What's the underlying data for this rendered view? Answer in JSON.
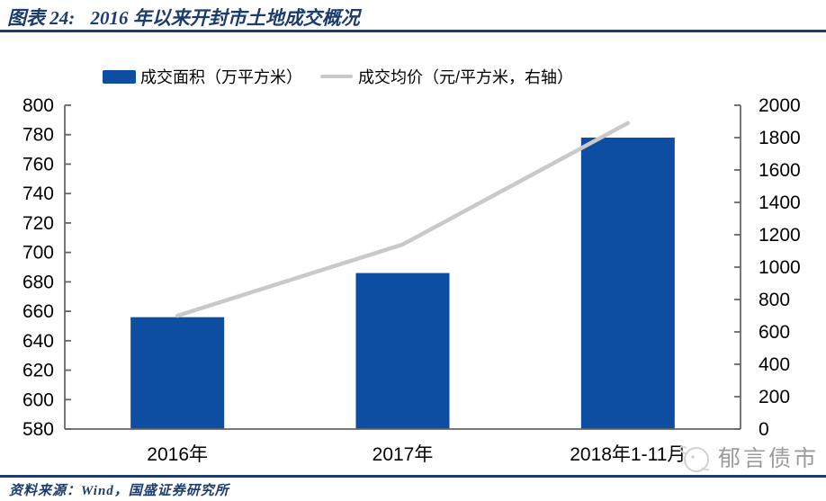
{
  "header": {
    "title_prefix": "图表 24:",
    "title": "2016 年以来开封市土地成交概况"
  },
  "legend": {
    "items": [
      {
        "label": "成交面积（万平方米）"
      },
      {
        "label": "成交均价（元/平方米，右轴）"
      }
    ]
  },
  "footer": {
    "source": "资料来源：Wind，国盛证券研究所"
  },
  "watermark": {
    "text": "郁言债市"
  },
  "colors": {
    "bar": "#0d4da2",
    "line": "#c9c9c9",
    "navy": "#1c3c6e",
    "axis": "#666666",
    "watermark": "#9b9b9b"
  },
  "chart_data": {
    "type": "bar",
    "subtype": "bar+line, dual axis",
    "title": "2016 年以来开封市土地成交概况",
    "categories": [
      "2016年",
      "2017年",
      "2018年1-11月"
    ],
    "series": [
      {
        "name": "成交面积（万平方米）",
        "type": "bar",
        "axis": "left",
        "values": [
          656,
          686,
          778
        ]
      },
      {
        "name": "成交均价（元/平方米，右轴）",
        "type": "line",
        "axis": "right",
        "values": [
          700,
          1140,
          1890
        ]
      }
    ],
    "left_axis": {
      "min": 580,
      "max": 800,
      "step": 20,
      "ticks": [
        800,
        780,
        760,
        740,
        720,
        700,
        680,
        660,
        640,
        620,
        600,
        580
      ]
    },
    "right_axis": {
      "min": 0,
      "max": 2000,
      "step": 200,
      "ticks": [
        2000,
        1800,
        1600,
        1400,
        1200,
        1000,
        800,
        600,
        400,
        200,
        0
      ]
    },
    "grid": false,
    "legend_position": "top"
  }
}
